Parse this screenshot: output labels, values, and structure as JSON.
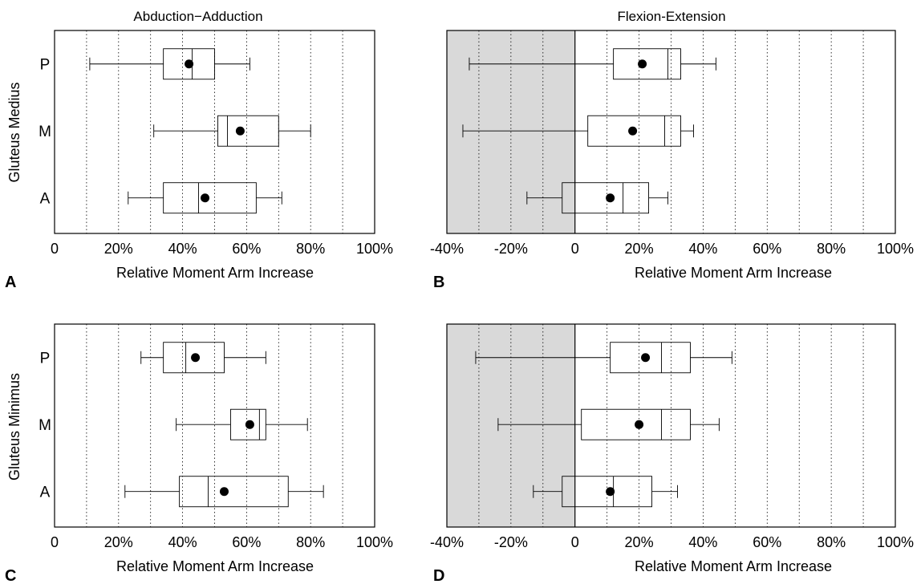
{
  "chart_data": [
    {
      "panel": "A",
      "type": "box",
      "orientation": "horizontal",
      "title": "Abduction−Adduction",
      "xlabel": "Relative Moment Arm Increase",
      "ylabel": "Gluteus Medius",
      "xlim": [
        0,
        100
      ],
      "xticks": [
        "0",
        "20%",
        "40%",
        "60%",
        "80%",
        "100%"
      ],
      "grid": "vertical dotted every 10%",
      "shaded_region": null,
      "categories": [
        "P",
        "M",
        "A"
      ],
      "boxes": [
        {
          "category": "P",
          "whisker_low": 11,
          "q1": 34,
          "median": 43,
          "q3": 50,
          "whisker_high": 61,
          "mean": 42
        },
        {
          "category": "M",
          "whisker_low": 31,
          "q1": 51,
          "median": 54,
          "q3": 70,
          "whisker_high": 80,
          "mean": 58
        },
        {
          "category": "A",
          "whisker_low": 23,
          "q1": 34,
          "median": 45,
          "q3": 63,
          "whisker_high": 71,
          "mean": 47
        }
      ]
    },
    {
      "panel": "B",
      "type": "box",
      "orientation": "horizontal",
      "title": "Flexion-Extension",
      "xlabel": "Relative Moment Arm Increase",
      "ylabel": "",
      "xlim": [
        -40,
        100
      ],
      "xticks": [
        "-40%",
        "-20%",
        "0",
        "20%",
        "40%",
        "60%",
        "80%",
        "100%"
      ],
      "grid": "vertical dotted every 10%",
      "shaded_region": [
        -40,
        0
      ],
      "categories": [
        "P",
        "M",
        "A"
      ],
      "boxes": [
        {
          "category": "P",
          "whisker_low": -33,
          "q1": 12,
          "median": 29,
          "q3": 33,
          "whisker_high": 44,
          "mean": 21
        },
        {
          "category": "M",
          "whisker_low": -35,
          "q1": 4,
          "median": 28,
          "q3": 33,
          "whisker_high": 37,
          "mean": 18
        },
        {
          "category": "A",
          "whisker_low": -15,
          "q1": -4,
          "median": 15,
          "q3": 23,
          "whisker_high": 29,
          "mean": 11
        }
      ]
    },
    {
      "panel": "C",
      "type": "box",
      "orientation": "horizontal",
      "title": "",
      "xlabel": "Relative Moment Arm Increase",
      "ylabel": "Gluteus Minimus",
      "xlim": [
        0,
        100
      ],
      "xticks": [
        "0",
        "20%",
        "40%",
        "60%",
        "80%",
        "100%"
      ],
      "grid": "vertical dotted every 10%",
      "shaded_region": null,
      "categories": [
        "P",
        "M",
        "A"
      ],
      "boxes": [
        {
          "category": "P",
          "whisker_low": 27,
          "q1": 34,
          "median": 41,
          "q3": 53,
          "whisker_high": 66,
          "mean": 44
        },
        {
          "category": "M",
          "whisker_low": 38,
          "q1": 55,
          "median": 64,
          "q3": 66,
          "whisker_high": 79,
          "mean": 61
        },
        {
          "category": "A",
          "whisker_low": 22,
          "q1": 39,
          "median": 48,
          "q3": 73,
          "whisker_high": 84,
          "mean": 53
        }
      ]
    },
    {
      "panel": "D",
      "type": "box",
      "orientation": "horizontal",
      "title": "",
      "xlabel": "Relative Moment Arm Increase",
      "ylabel": "",
      "xlim": [
        -40,
        100
      ],
      "xticks": [
        "-40%",
        "-20%",
        "0",
        "20%",
        "40%",
        "60%",
        "80%",
        "100%"
      ],
      "grid": "vertical dotted every 10%",
      "shaded_region": [
        -40,
        0
      ],
      "categories": [
        "P",
        "M",
        "A"
      ],
      "boxes": [
        {
          "category": "P",
          "whisker_low": -31,
          "q1": 11,
          "median": 27,
          "q3": 36,
          "whisker_high": 49,
          "mean": 22
        },
        {
          "category": "M",
          "whisker_low": -24,
          "q1": 2,
          "median": 27,
          "q3": 36,
          "whisker_high": 45,
          "mean": 20
        },
        {
          "category": "A",
          "whisker_low": -13,
          "q1": -4,
          "median": 12,
          "q3": 24,
          "whisker_high": 32,
          "mean": 11
        }
      ]
    }
  ],
  "colors": {
    "shade": "#d9d9d9",
    "box_stroke": "#000000",
    "mean_marker": "#000000"
  }
}
